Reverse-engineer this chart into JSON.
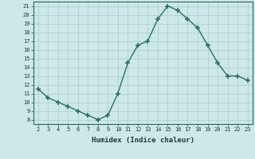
{
  "x": [
    2,
    3,
    4,
    5,
    6,
    7,
    8,
    9,
    10,
    11,
    12,
    13,
    14,
    15,
    16,
    17,
    18,
    19,
    20,
    21,
    22,
    23
  ],
  "y": [
    11.5,
    10.5,
    10.0,
    9.5,
    9.0,
    8.5,
    8.0,
    8.5,
    11.0,
    14.5,
    16.5,
    17.0,
    19.5,
    21.0,
    20.5,
    19.5,
    18.5,
    16.5,
    14.5,
    13.0,
    13.0,
    12.5
  ],
  "xlabel": "Humidex (Indice chaleur)",
  "line_color": "#2e7060",
  "marker_color": "#2e7060",
  "bg_color": "#cce8e8",
  "grid_color": "#aacccc",
  "xlim": [
    1.5,
    23.5
  ],
  "ylim": [
    7.5,
    21.5
  ],
  "yticks": [
    8,
    9,
    10,
    11,
    12,
    13,
    14,
    15,
    16,
    17,
    18,
    19,
    20,
    21
  ],
  "xticks": [
    2,
    3,
    4,
    5,
    6,
    7,
    8,
    9,
    10,
    11,
    12,
    13,
    14,
    15,
    16,
    17,
    18,
    19,
    20,
    21,
    22,
    23
  ],
  "tick_fontsize": 5.0,
  "xlabel_fontsize": 6.5
}
